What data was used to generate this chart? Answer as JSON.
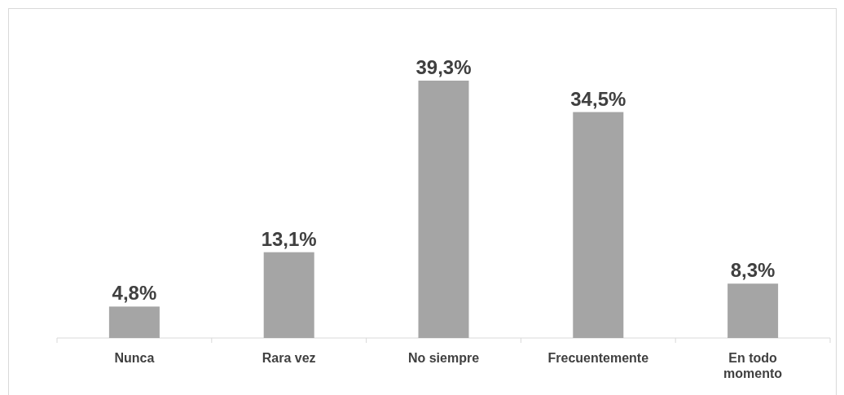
{
  "chart_data": {
    "type": "bar",
    "categories": [
      "Nunca",
      "Rara vez",
      "No siempre",
      "Frecuentemente",
      "En todo momento"
    ],
    "values": [
      4.8,
      13.1,
      39.3,
      34.5,
      8.3
    ],
    "value_labels": [
      "4,8%",
      "13,1%",
      "39,3%",
      "34,5%",
      "8,3%"
    ],
    "color": "#a5a5a5"
  }
}
